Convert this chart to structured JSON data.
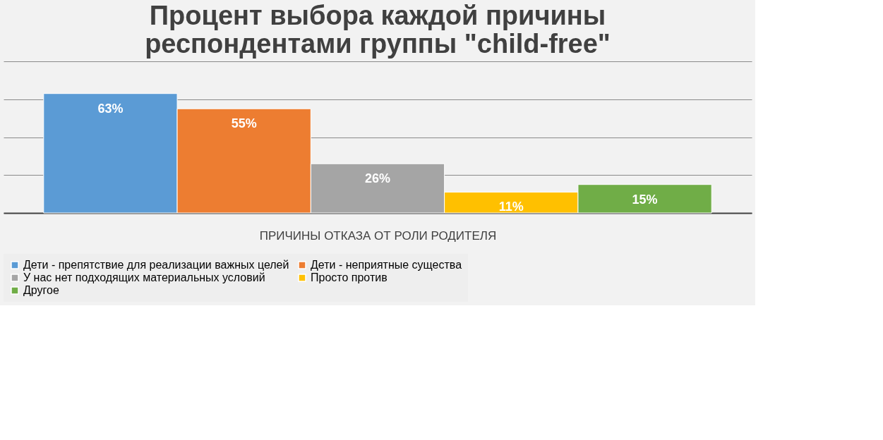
{
  "chart_data": {
    "type": "bar",
    "title": "Процент выбора каждой причины респондентами группы \"child-free\"",
    "xlabel": "ПРИЧИНЫ ОТКАЗА ОТ РОЛИ РОДИТЕЛЯ",
    "categories": [
      null
    ],
    "series": [
      {
        "name": "Дети - препятствие для реализации важных целей",
        "color": "#5b9bd5",
        "values": [
          63
        ],
        "value_labels": [
          "63%"
        ]
      },
      {
        "name": "Дети - неприятные существа",
        "color": "#ed7d31",
        "values": [
          55
        ],
        "value_labels": [
          "55%"
        ]
      },
      {
        "name": "У нас нет подходящих материальных условий",
        "color": "#a5a5a5",
        "values": [
          26
        ],
        "value_labels": [
          "26%"
        ]
      },
      {
        "name": "Просто против",
        "color": "#ffc000",
        "values": [
          11
        ],
        "value_labels": [
          "11%"
        ]
      },
      {
        "name": "Другое",
        "color": "#70ad47",
        "values": [
          15
        ],
        "value_labels": [
          "15%"
        ]
      }
    ],
    "grid": "y",
    "legend": "bottom",
    "tick_labels": false
  }
}
